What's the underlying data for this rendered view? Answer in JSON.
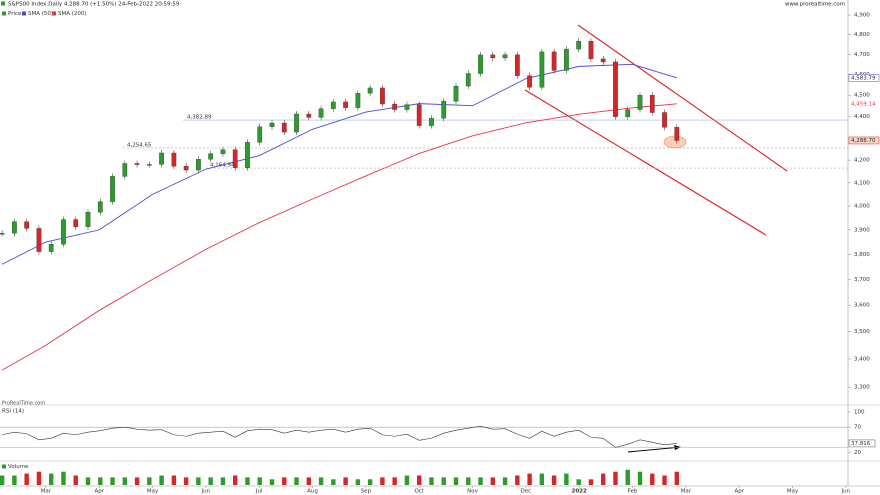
{
  "header": {
    "title": "S&P500 Index Daily 4,288.70 (+1.50%) 24-Feb-2022 20:59:59",
    "site": "www.prorealtime.com",
    "watermark": "ProRealTime.com"
  },
  "chart_data": [
    {
      "type": "candlestick",
      "x": [
        -0.82,
        -0.59,
        -0.36,
        -0.13,
        0.1,
        0.33,
        0.56,
        0.79,
        1.02,
        1.25,
        1.48,
        1.71,
        1.94,
        2.17,
        2.4,
        2.63,
        2.86,
        3.09,
        3.32,
        3.55,
        3.78,
        4.01,
        4.24,
        4.47,
        4.7,
        4.93,
        5.16,
        5.39,
        5.62,
        5.85,
        6.08,
        6.31,
        6.54,
        6.77,
        7.0,
        7.23,
        7.46,
        7.69,
        7.92,
        8.15,
        8.38,
        8.61,
        8.84,
        9.07,
        9.3,
        9.53,
        9.76,
        9.99,
        10.22,
        10.45,
        10.68,
        10.91,
        11.14,
        11.37,
        11.6,
        11.83
      ],
      "xlim": [
        -0.86,
        15.04
      ],
      "ylim": [
        3255,
        4937
      ],
      "log_scale": true,
      "yticks": [
        {
          "value": 3300,
          "label": "3,300"
        },
        {
          "value": 3400,
          "label": "3,400"
        },
        {
          "value": 3500,
          "label": "3,500"
        },
        {
          "value": 3600,
          "label": "3,600"
        },
        {
          "value": 3700,
          "label": "3,700"
        },
        {
          "value": 3800,
          "label": "3,800"
        },
        {
          "value": 3900,
          "label": "3,900"
        },
        {
          "value": 4000,
          "label": "4,000"
        },
        {
          "value": 4100,
          "label": "4,100"
        },
        {
          "value": 4200,
          "label": "4,200"
        },
        {
          "value": 4400,
          "label": "4,400"
        },
        {
          "value": 4500,
          "label": "4,500"
        },
        {
          "value": 4600,
          "label": "4,600"
        },
        {
          "value": 4700,
          "label": "4,700"
        },
        {
          "value": 4800,
          "label": "4,800"
        },
        {
          "value": 4900,
          "label": "4,900"
        }
      ],
      "series": [
        {
          "name": "Price",
          "color": "#2e9b2e",
          "down_color": "#d62728",
          "end_label": "4,288.70",
          "values": [
            3886,
            3934,
            3906,
            3811,
            3841,
            3943,
            3913,
            3974,
            4019,
            4128,
            4185,
            4180,
            4181,
            4232,
            4173,
            4156,
            4204,
            4229,
            4247,
            4166,
            4280,
            4352,
            4369,
            4327,
            4411,
            4395,
            4436,
            4468,
            4441,
            4509,
            4535,
            4458,
            4432,
            4455,
            4357,
            4391,
            4471,
            4544,
            4605,
            4697,
            4682,
            4698,
            4594,
            4538,
            4712,
            4620,
            4726,
            4766,
            4677,
            4662,
            4398,
            4432,
            4500,
            4418,
            4349,
            4288.7
          ]
        },
        {
          "name": "SMA (50)",
          "type": "line",
          "color": "#4b4bd6",
          "end_label": "4,583.79",
          "x": [
            -0.82,
            0,
            1,
            2,
            3,
            4,
            5,
            6,
            7,
            8,
            9,
            10,
            11,
            11.83
          ],
          "values": [
            3760,
            3850,
            3900,
            4050,
            4160,
            4220,
            4340,
            4420,
            4460,
            4450,
            4580,
            4640,
            4650,
            4583.79
          ]
        },
        {
          "name": "SMA (200)",
          "type": "line",
          "color": "#e8334a",
          "end_label": "4,459.14",
          "x": [
            -0.82,
            0,
            1,
            2,
            3,
            4,
            5,
            6,
            7,
            8,
            9,
            10,
            11,
            11.83
          ],
          "values": [
            3360,
            3450,
            3580,
            3700,
            3820,
            3930,
            4030,
            4130,
            4230,
            4310,
            4370,
            4410,
            4440,
            4459.14
          ]
        }
      ],
      "levels": [
        {
          "value": 4382.89,
          "label": "4,382.89"
        },
        {
          "value": 4254.65,
          "label": "4,254.65"
        },
        {
          "value": 4164.94,
          "label": "4,164.94"
        }
      ]
    },
    {
      "type": "line",
      "title": "RSI (14)",
      "color": "#333333",
      "xlim": [
        -0.86,
        15.04
      ],
      "ylim": [
        5,
        100
      ],
      "yticks": [
        100,
        70,
        20
      ],
      "levels": [
        70,
        30
      ],
      "end_label": "37.816",
      "values": [
        55,
        60,
        57,
        45,
        48,
        58,
        55,
        60,
        63,
        68,
        70,
        66,
        64,
        65,
        55,
        52,
        58,
        60,
        62,
        50,
        63,
        66,
        65,
        58,
        64,
        60,
        64,
        66,
        60,
        66,
        68,
        55,
        52,
        56,
        44,
        48,
        58,
        64,
        68,
        72,
        66,
        67,
        56,
        48,
        62,
        52,
        60,
        64,
        50,
        48,
        30,
        36,
        45,
        40,
        35,
        37.816
      ]
    },
    {
      "type": "bar",
      "title": "Volume",
      "xlim": [
        -0.86,
        15.04
      ],
      "ylim": [
        0,
        10
      ],
      "values": [
        5,
        5,
        6,
        7,
        6,
        7,
        5,
        4,
        4,
        4,
        4,
        4,
        4,
        5,
        5,
        4,
        4,
        4,
        4,
        5,
        4,
        4,
        3,
        4,
        4,
        4,
        4,
        3,
        4,
        3,
        3,
        4,
        4,
        5,
        5,
        4,
        4,
        4,
        4,
        4,
        4,
        4,
        5,
        6,
        6,
        5,
        6,
        3,
        3,
        6,
        7,
        8,
        7,
        6,
        5,
        7
      ],
      "xticks": [
        {
          "value": 0,
          "label": "Mar"
        },
        {
          "value": 1,
          "label": "Apr"
        },
        {
          "value": 2,
          "label": "May"
        },
        {
          "value": 3,
          "label": "Jun"
        },
        {
          "value": 4,
          "label": "Jul"
        },
        {
          "value": 5,
          "label": "Aug"
        },
        {
          "value": 6,
          "label": "Sep"
        },
        {
          "value": 7,
          "label": "Oct"
        },
        {
          "value": 8,
          "label": "Nov"
        },
        {
          "value": 9,
          "label": "Dec"
        },
        {
          "value": 10,
          "label": "2022"
        },
        {
          "value": 11,
          "label": "Feb"
        },
        {
          "value": 12,
          "label": "Mar"
        },
        {
          "value": 13,
          "label": "Apr"
        },
        {
          "value": 14,
          "label": "May"
        },
        {
          "value": 15,
          "label": "Jun"
        }
      ]
    }
  ]
}
